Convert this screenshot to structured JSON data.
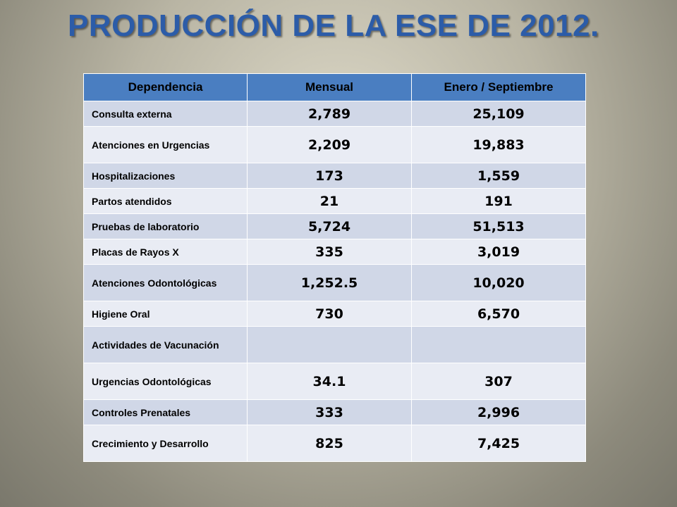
{
  "page": {
    "title": "PRODUCCIÓN DE LA ESE DE 2012."
  },
  "table": {
    "headers": [
      "Dependencia",
      "Mensual",
      "Enero / Septiembre"
    ],
    "rows": [
      {
        "label": "Consulta externa",
        "mensual": "2,789",
        "enero_septiembre": "25,109"
      },
      {
        "label": "Atenciones en Urgencias",
        "mensual": "2,209",
        "enero_septiembre": "19,883"
      },
      {
        "label": "Hospitalizaciones",
        "mensual": "173",
        "enero_septiembre": "1,559"
      },
      {
        "label": "Partos atendidos",
        "mensual": "21",
        "enero_septiembre": "191"
      },
      {
        "label": "Pruebas de laboratorio",
        "mensual": "5,724",
        "enero_septiembre": "51,513"
      },
      {
        "label": "Placas de Rayos X",
        "mensual": "335",
        "enero_septiembre": "3,019"
      },
      {
        "label": "Atenciones Odontológicas",
        "mensual": "1,252.5",
        "enero_septiembre": "10,020"
      },
      {
        "label": "Higiene Oral",
        "mensual": "730",
        "enero_septiembre": "6,570"
      },
      {
        "label": "Actividades de Vacunación",
        "mensual": "",
        "enero_septiembre": ""
      },
      {
        "label": "Urgencias Odontológicas",
        "mensual": "34.1",
        "enero_septiembre": "307"
      },
      {
        "label": "Controles Prenatales",
        "mensual": "333",
        "enero_septiembre": "2,996"
      },
      {
        "label": "Crecimiento y Desarrollo",
        "mensual": "825",
        "enero_septiembre": "7,425"
      }
    ]
  },
  "colors": {
    "title": "#2c5ca8",
    "header_bg": "#4a7ec1",
    "row_odd": "#d0d7e7",
    "row_even": "#e9ecf4"
  }
}
